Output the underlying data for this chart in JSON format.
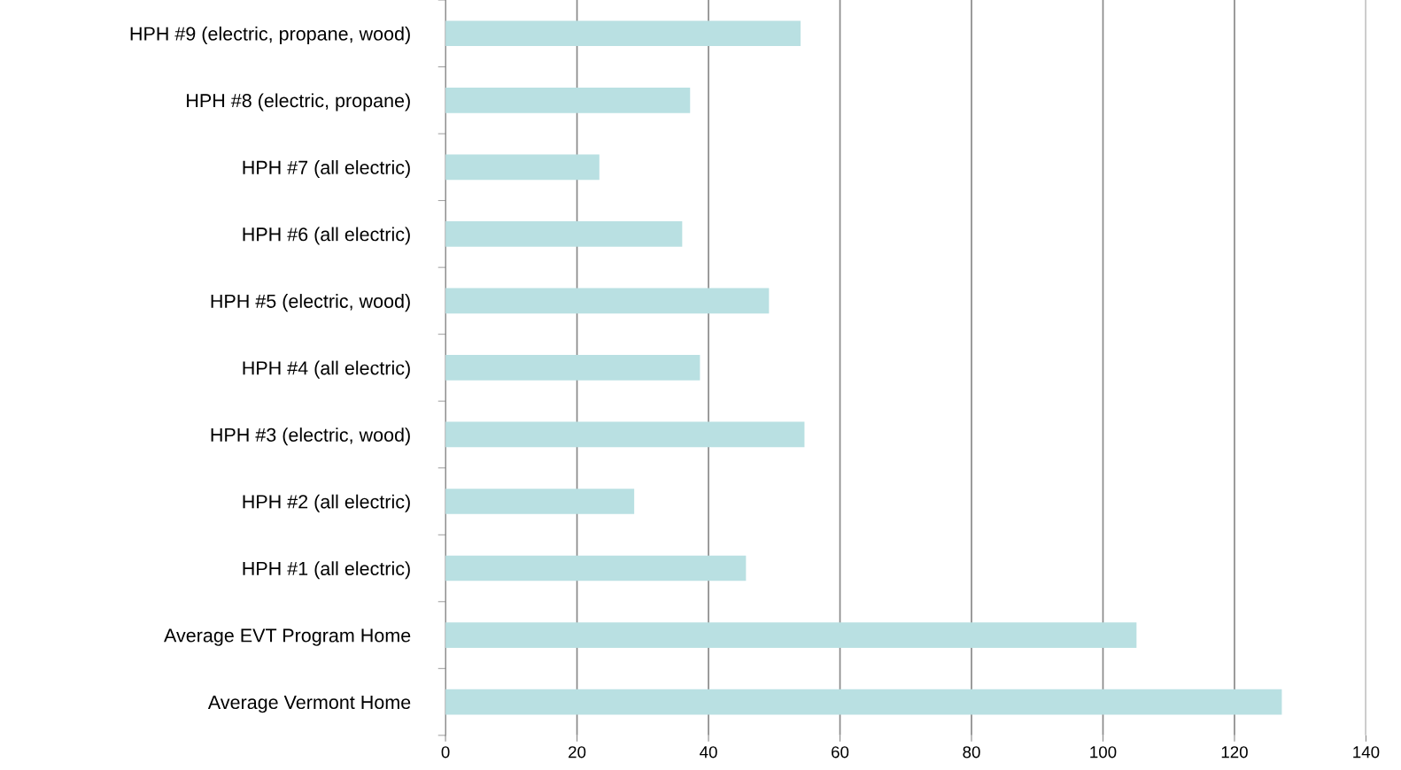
{
  "chart_data": {
    "type": "bar",
    "orientation": "horizontal",
    "categories": [
      "HPH #9 (electric, propane, wood)",
      "HPH #8 (electric, propane)",
      "HPH #7 (all electric)",
      "HPH #6 (all electric)",
      "HPH #5 (electric, wood)",
      "HPH #4 (all electric)",
      "HPH #3 (electric, wood)",
      "HPH #2 (all electric)",
      "HPH #1 (all electric)",
      "Average EVT Program Home",
      "Average Vermont Home"
    ],
    "values": [
      54,
      37.2,
      23.4,
      36,
      49.2,
      38.7,
      54.6,
      28.7,
      45.7,
      105.1,
      127.2
    ],
    "color": "#b9e0e2",
    "xlim": [
      0,
      140
    ],
    "xticks": [
      0,
      20,
      40,
      60,
      80,
      100,
      120,
      140
    ],
    "grid": "x"
  }
}
